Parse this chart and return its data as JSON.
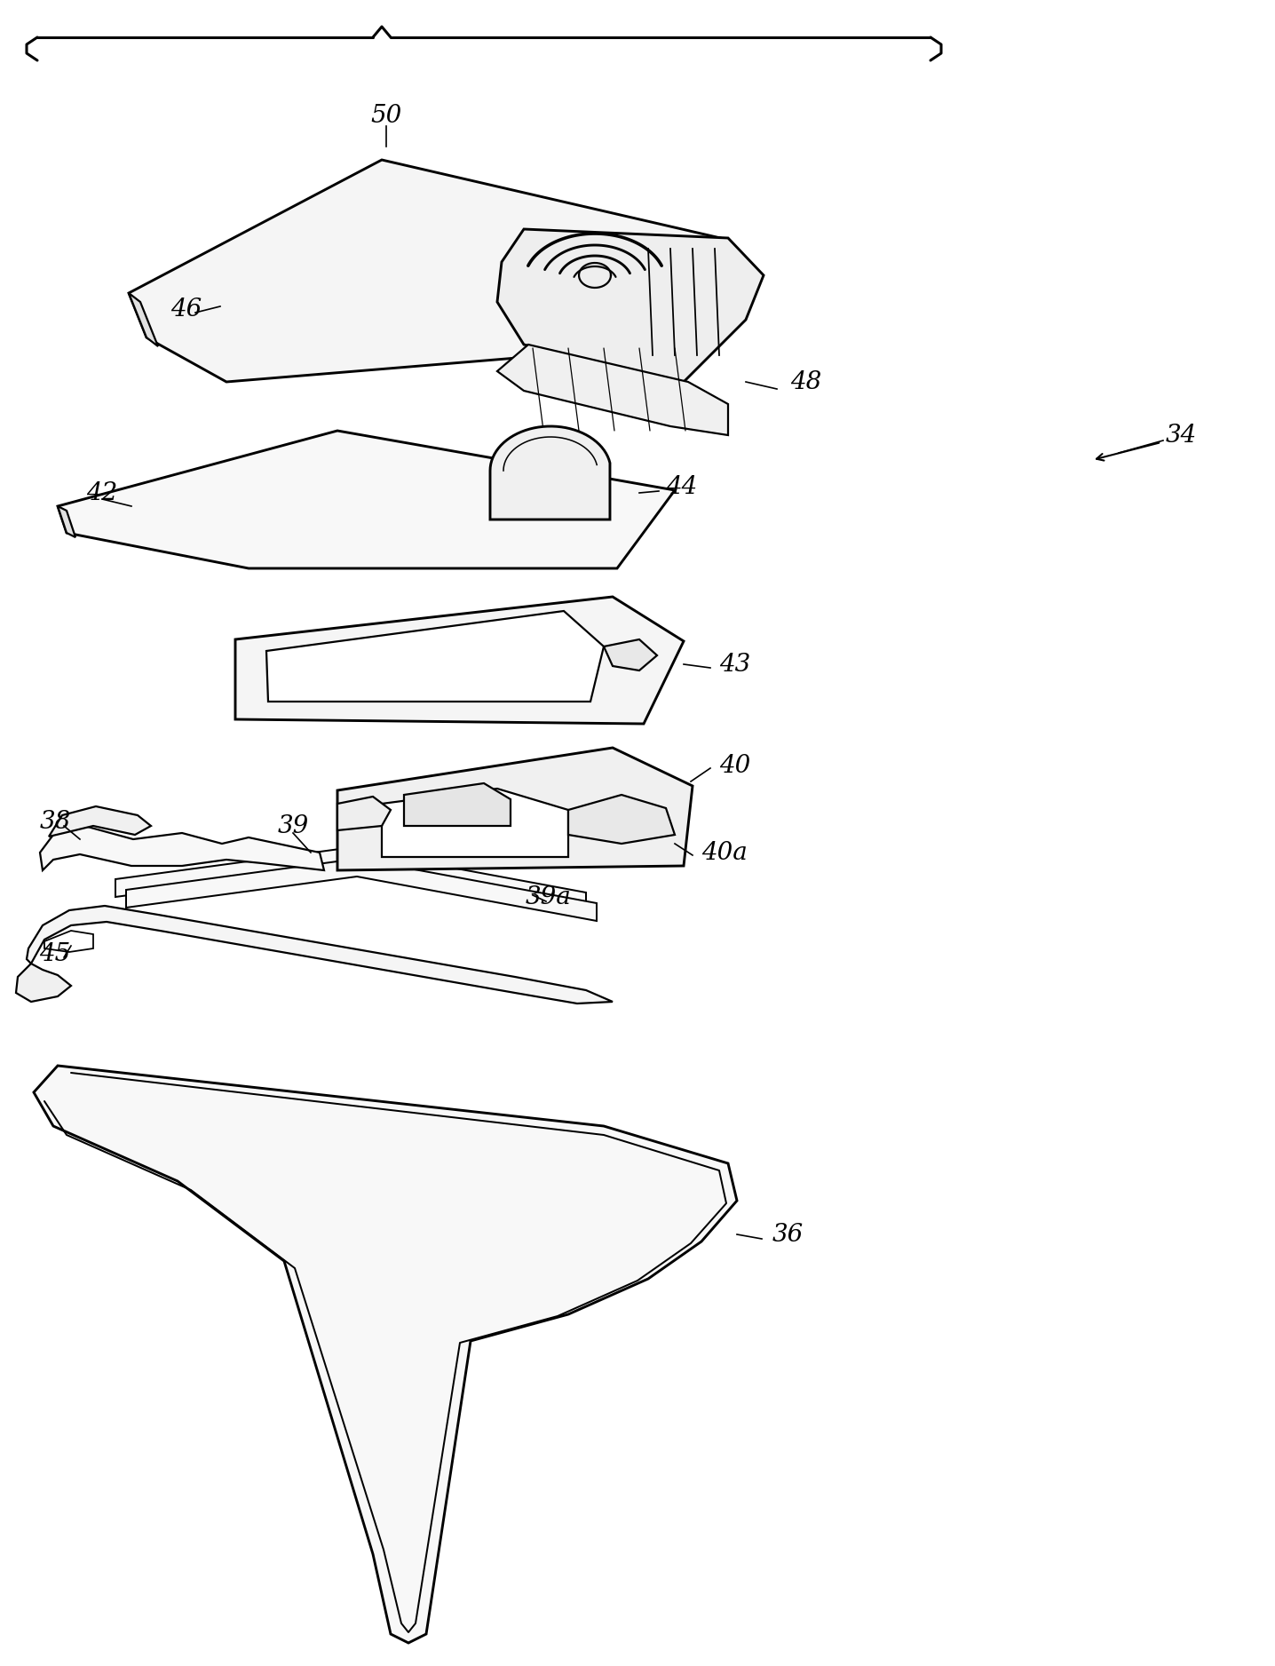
{
  "background_color": "#ffffff",
  "line_color": "#000000",
  "lw": 1.6,
  "label_fs": 20,
  "figsize": [
    14.36,
    18.76
  ],
  "dpi": 100
}
